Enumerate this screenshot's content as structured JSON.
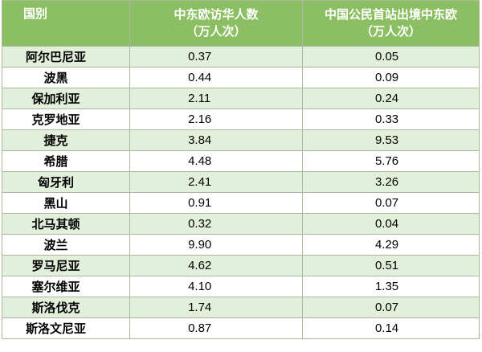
{
  "table": {
    "header": [
      [
        "国别"
      ],
      [
        "中东欧访华人数",
        "（万人次）"
      ],
      [
        "中国公民首站出境中东欧",
        "（万人次）"
      ]
    ],
    "rows": [
      [
        "阿尔巴尼亚",
        "0.37",
        "0.05"
      ],
      [
        "波黑",
        "0.44",
        "0.09"
      ],
      [
        "保加利亚",
        "2.11",
        "0.24"
      ],
      [
        "克罗地亚",
        "2.16",
        "0.33"
      ],
      [
        "捷克",
        "3.84",
        "9.53"
      ],
      [
        "希腊",
        "4.48",
        "5.76"
      ],
      [
        "匈牙利",
        "2.41",
        "3.26"
      ],
      [
        "黑山",
        "0.91",
        "0.07"
      ],
      [
        "北马其顿",
        "0.32",
        "0.04"
      ],
      [
        "波兰",
        "9.90",
        "4.29"
      ],
      [
        "罗马尼亚",
        "4.62",
        "0.51"
      ],
      [
        "塞尔维亚",
        "4.10",
        "1.35"
      ],
      [
        "斯洛伐克",
        "1.74",
        "0.07"
      ],
      [
        "斯洛文尼亚",
        "0.87",
        "0.14"
      ]
    ]
  }
}
